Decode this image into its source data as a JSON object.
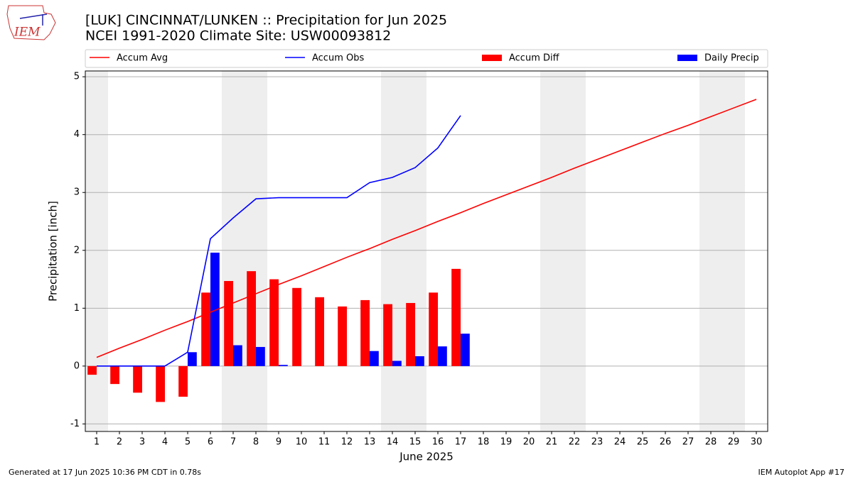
{
  "chart_data": {
    "type": "bar",
    "title": "[LUK] CINCINNAT/LUNKEN :: Precipitation for Jun 2025",
    "subtitle": "NCEI 1991-2020 Climate Site: USW00093812",
    "logo_text": "IEM",
    "y_label": "Precipitation [inch]",
    "x_label": "June 2025",
    "footer_left": "Generated at 17 Jun 2025 10:36 PM CDT in 0.78s",
    "footer_right": "IEM Autoplot App #17",
    "x": [
      1,
      2,
      3,
      4,
      5,
      6,
      7,
      8,
      9,
      10,
      11,
      12,
      13,
      14,
      15,
      16,
      17,
      18,
      19,
      20,
      21,
      22,
      23,
      24,
      25,
      26,
      27,
      28,
      29,
      30
    ],
    "xlim": [
      0.5,
      30.5
    ],
    "xticks": [
      1,
      2,
      3,
      4,
      5,
      6,
      7,
      8,
      9,
      10,
      11,
      12,
      13,
      14,
      15,
      16,
      17,
      18,
      19,
      20,
      21,
      22,
      23,
      24,
      25,
      26,
      27,
      28,
      29,
      30
    ],
    "ylim": [
      -1.13,
      5.1
    ],
    "yticks": [
      -1,
      0,
      1,
      2,
      3,
      4,
      5
    ],
    "grid": true,
    "shaded_days": [
      1,
      7,
      8,
      14,
      15,
      21,
      22,
      28,
      29
    ],
    "series": [
      {
        "name": "Accum Avg",
        "kind": "line",
        "color": "#ff0000",
        "values": [
          0.15,
          0.31,
          0.46,
          0.62,
          0.77,
          0.93,
          1.09,
          1.25,
          1.41,
          1.56,
          1.72,
          1.88,
          2.03,
          2.19,
          2.34,
          2.5,
          2.65,
          2.81,
          2.96,
          3.11,
          3.26,
          3.42,
          3.57,
          3.72,
          3.87,
          4.02,
          4.16,
          4.31,
          4.46,
          4.61
        ]
      },
      {
        "name": "Accum Obs",
        "kind": "line",
        "color": "#0000ff",
        "values": [
          0,
          0,
          0,
          0,
          0.24,
          2.2,
          2.56,
          2.89,
          2.91,
          2.91,
          2.91,
          2.91,
          3.17,
          3.26,
          3.43,
          3.77,
          4.33,
          null,
          null,
          null,
          null,
          null,
          null,
          null,
          null,
          null,
          null,
          null,
          null,
          null
        ]
      },
      {
        "name": "Accum Diff",
        "kind": "bar",
        "color": "#ff0000",
        "values": [
          -0.15,
          -0.31,
          -0.46,
          -0.62,
          -0.53,
          1.27,
          1.47,
          1.64,
          1.5,
          1.35,
          1.19,
          1.03,
          1.14,
          1.07,
          1.09,
          1.27,
          1.68,
          null,
          null,
          null,
          null,
          null,
          null,
          null,
          null,
          null,
          null,
          null,
          null,
          null
        ]
      },
      {
        "name": "Daily Precip",
        "kind": "bar",
        "color": "#0000ff",
        "values": [
          0,
          0,
          0,
          0,
          0.24,
          1.96,
          0.36,
          0.33,
          0.02,
          0,
          0,
          0,
          0.26,
          0.09,
          0.17,
          0.34,
          0.56,
          null,
          null,
          null,
          null,
          null,
          null,
          null,
          null,
          null,
          null,
          null,
          null,
          null
        ]
      }
    ]
  }
}
